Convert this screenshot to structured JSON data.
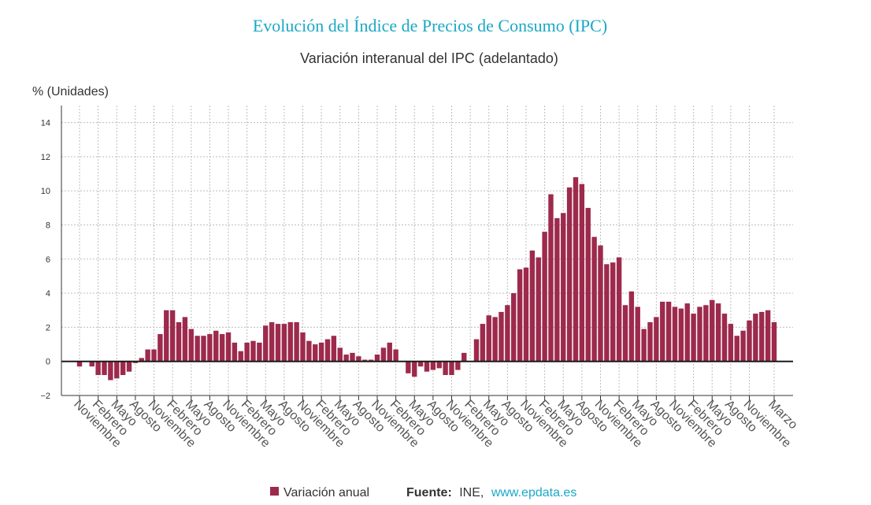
{
  "chart_data": {
    "type": "bar",
    "title": "Evolución del Índice de Precios de Consumo (IPC)",
    "subtitle": "Variación interanual del IPC (adelantado)",
    "xlabel": "",
    "ylabel": "% (Unidades)",
    "ylim": [
      -2,
      15
    ],
    "grid": true,
    "legend_position": "bottom-center",
    "y_ticks": [
      {
        "value": 14,
        "label": "14"
      },
      {
        "value": 12,
        "label": "12"
      },
      {
        "value": 10,
        "label": "10"
      },
      {
        "value": 8,
        "label": "8"
      },
      {
        "value": 6,
        "label": "6"
      },
      {
        "value": 4,
        "label": "4"
      },
      {
        "value": 2,
        "label": "2"
      },
      {
        "value": 0,
        "label": "0"
      },
      {
        "value": -2,
        "label": "−2"
      }
    ],
    "x_ticks": [
      {
        "index": 0,
        "label": "Noviembre"
      },
      {
        "index": 3,
        "label": "Febrero"
      },
      {
        "index": 6,
        "label": "Mayo"
      },
      {
        "index": 9,
        "label": "Agosto"
      },
      {
        "index": 12,
        "label": "Noviembre"
      },
      {
        "index": 15,
        "label": "Febrero"
      },
      {
        "index": 18,
        "label": "Mayo"
      },
      {
        "index": 21,
        "label": "Agosto"
      },
      {
        "index": 24,
        "label": "Noviembre"
      },
      {
        "index": 27,
        "label": "Febrero"
      },
      {
        "index": 30,
        "label": "Mayo"
      },
      {
        "index": 33,
        "label": "Agosto"
      },
      {
        "index": 36,
        "label": "Noviembre"
      },
      {
        "index": 39,
        "label": "Febrero"
      },
      {
        "index": 42,
        "label": "Mayo"
      },
      {
        "index": 45,
        "label": "Agosto"
      },
      {
        "index": 48,
        "label": "Noviembre"
      },
      {
        "index": 51,
        "label": "Febrero"
      },
      {
        "index": 54,
        "label": "Mayo"
      },
      {
        "index": 57,
        "label": "Agosto"
      },
      {
        "index": 60,
        "label": "Noviembre"
      },
      {
        "index": 63,
        "label": "Febrero"
      },
      {
        "index": 66,
        "label": "Mayo"
      },
      {
        "index": 69,
        "label": "Agosto"
      },
      {
        "index": 72,
        "label": "Noviembre"
      },
      {
        "index": 75,
        "label": "Febrero"
      },
      {
        "index": 78,
        "label": "Mayo"
      },
      {
        "index": 81,
        "label": "Agosto"
      },
      {
        "index": 84,
        "label": "Noviembre"
      },
      {
        "index": 87,
        "label": "Febrero"
      },
      {
        "index": 90,
        "label": "Mayo"
      },
      {
        "index": 93,
        "label": "Agosto"
      },
      {
        "index": 96,
        "label": "Noviembre"
      },
      {
        "index": 99,
        "label": "Febrero"
      },
      {
        "index": 102,
        "label": "Mayo"
      },
      {
        "index": 105,
        "label": "Agosto"
      },
      {
        "index": 108,
        "label": "Noviembre"
      },
      {
        "index": 112,
        "label": "Marzo"
      }
    ],
    "series": [
      {
        "name": "Variación anual",
        "color": "#9d2a4c",
        "values": [
          -0.3,
          0.0,
          -0.3,
          -0.8,
          -0.8,
          -1.1,
          -1.0,
          -0.8,
          -0.6,
          -0.1,
          0.2,
          0.7,
          0.7,
          1.6,
          3.0,
          3.0,
          2.3,
          2.6,
          1.9,
          1.5,
          1.5,
          1.6,
          1.8,
          1.6,
          1.7,
          1.1,
          0.6,
          1.1,
          1.2,
          1.1,
          2.1,
          2.3,
          2.2,
          2.2,
          2.3,
          2.3,
          1.7,
          1.2,
          1.0,
          1.1,
          1.3,
          1.5,
          0.8,
          0.4,
          0.5,
          0.3,
          0.1,
          0.1,
          0.4,
          0.8,
          1.1,
          0.7,
          0.0,
          -0.7,
          -0.9,
          -0.3,
          -0.6,
          -0.5,
          -0.4,
          -0.8,
          -0.8,
          -0.5,
          0.5,
          0.0,
          1.3,
          2.2,
          2.7,
          2.6,
          2.9,
          3.3,
          4.0,
          5.4,
          5.5,
          6.5,
          6.1,
          7.6,
          9.8,
          8.4,
          8.7,
          10.2,
          10.8,
          10.4,
          9.0,
          7.3,
          6.8,
          5.7,
          5.8,
          6.1,
          3.3,
          4.1,
          3.2,
          1.9,
          2.3,
          2.6,
          3.5,
          3.5,
          3.2,
          3.1,
          3.4,
          2.8,
          3.2,
          3.3,
          3.6,
          3.4,
          2.8,
          2.2,
          1.5,
          1.8,
          2.4,
          2.8,
          2.9,
          3.0,
          2.3
        ]
      }
    ]
  },
  "source": {
    "prefix": "Fuente:",
    "name": "INE,",
    "link": "www.epdata.es"
  },
  "colors": {
    "title": "#1ba8c6",
    "link": "#1ba8c6",
    "axis": "#333333",
    "grid": "#bdbdbd",
    "zero_line": "#1a1a1a"
  }
}
